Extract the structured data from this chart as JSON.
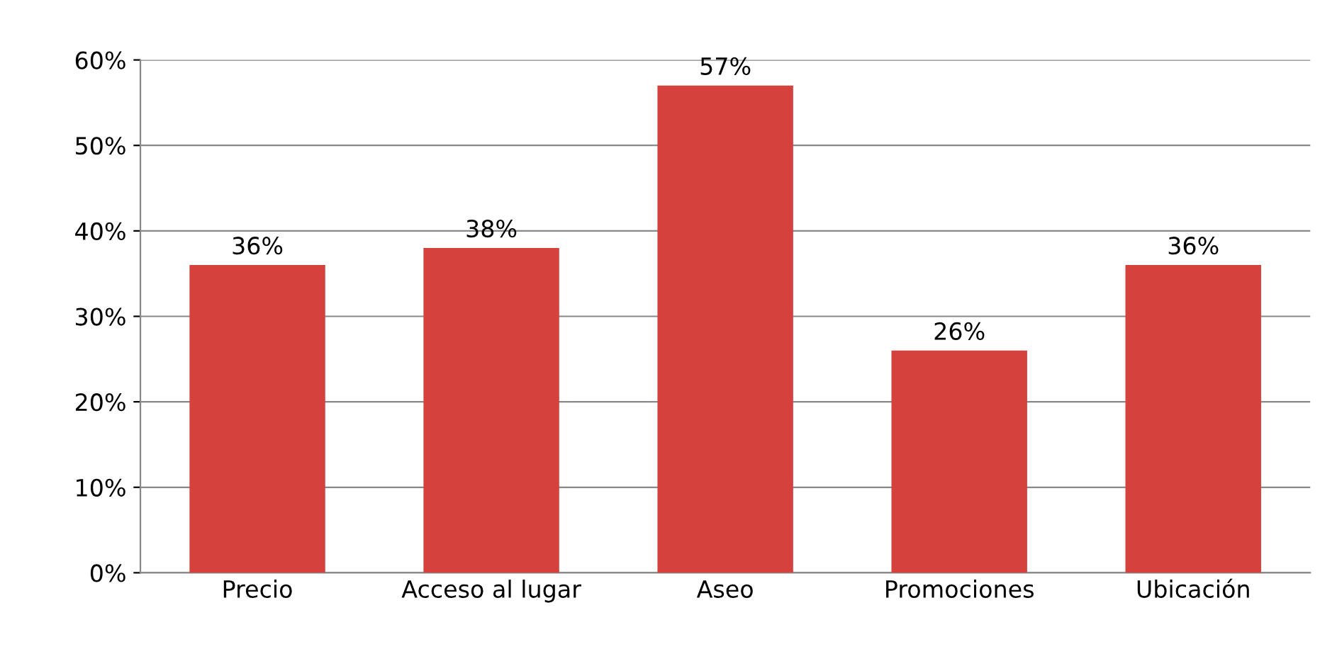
{
  "chart_data": {
    "type": "bar",
    "categories": [
      "Precio",
      "Acceso al lugar",
      "Aseo",
      "Promociones",
      "Ubicación"
    ],
    "values": [
      36,
      38,
      57,
      26,
      36
    ],
    "value_labels": [
      "36%",
      "38%",
      "57%",
      "26%",
      "36%"
    ],
    "color": "#d5413d",
    "ylim": [
      0,
      60
    ],
    "yticks": [
      {
        "value": 0,
        "label": "0%"
      },
      {
        "value": 10,
        "label": "10%"
      },
      {
        "value": 20,
        "label": "20%"
      },
      {
        "value": 30,
        "label": "30%"
      },
      {
        "value": 40,
        "label": "40%"
      },
      {
        "value": 50,
        "label": "50%"
      },
      {
        "value": 60,
        "label": "60%"
      }
    ],
    "grid": "y"
  }
}
